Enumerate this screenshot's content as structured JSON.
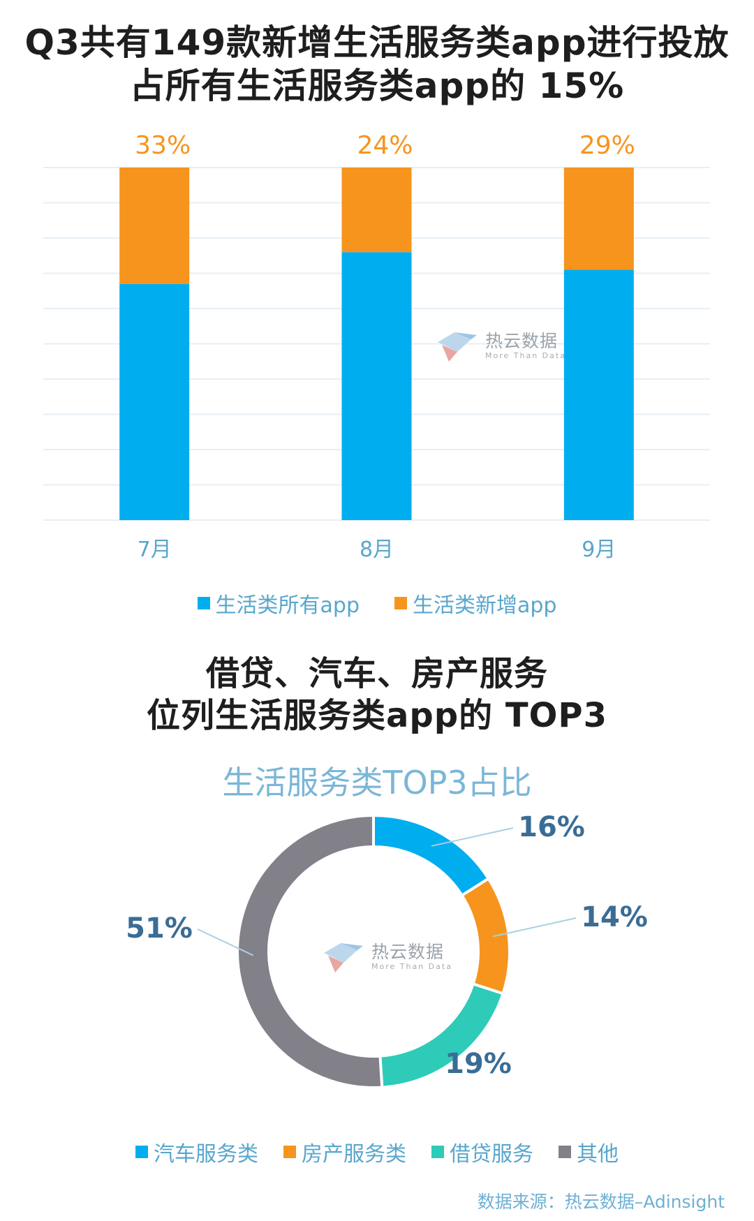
{
  "headline1": {
    "line1": "Q3共有149款新增生活服务类app进行投放",
    "line2": "占所有生活服务类app的 15%"
  },
  "chart_data": [
    {
      "type": "bar",
      "stacked": true,
      "categories": [
        "7月",
        "8月",
        "9月"
      ],
      "series": [
        {
          "name": "生活类所有app",
          "values": [
            67,
            76,
            71
          ]
        },
        {
          "name": "生活类新增app",
          "values": [
            33,
            24,
            29
          ]
        }
      ],
      "top_labels": [
        "33%",
        "24%",
        "29%"
      ],
      "ylim": [
        0,
        100
      ],
      "grid": true,
      "legend_position": "bottom",
      "colors": [
        "#00aeef",
        "#f7941d"
      ]
    },
    {
      "type": "pie",
      "donut": true,
      "title": "生活服务类TOP3占比",
      "categories": [
        "汽车服务类",
        "房产服务类",
        "借贷服务",
        "其他"
      ],
      "values": [
        16,
        14,
        19,
        51
      ],
      "labels": [
        "16%",
        "14%",
        "19%",
        "51%"
      ],
      "legend_position": "bottom",
      "colors": [
        "#00aeef",
        "#f7941d",
        "#2ecbb8",
        "#828088"
      ]
    }
  ],
  "headline2": {
    "line1": "借贷、汽车、房产服务",
    "line2": "位列生活服务类app的 TOP3"
  },
  "watermark": {
    "cn": "热云数据",
    "en": "More Than Data"
  },
  "source": "数据来源：热云数据–Adinsight",
  "colors": {
    "label_orange": "#f7941d",
    "label_blue": "#3a6d95",
    "axis_text": "#58a6cc"
  }
}
